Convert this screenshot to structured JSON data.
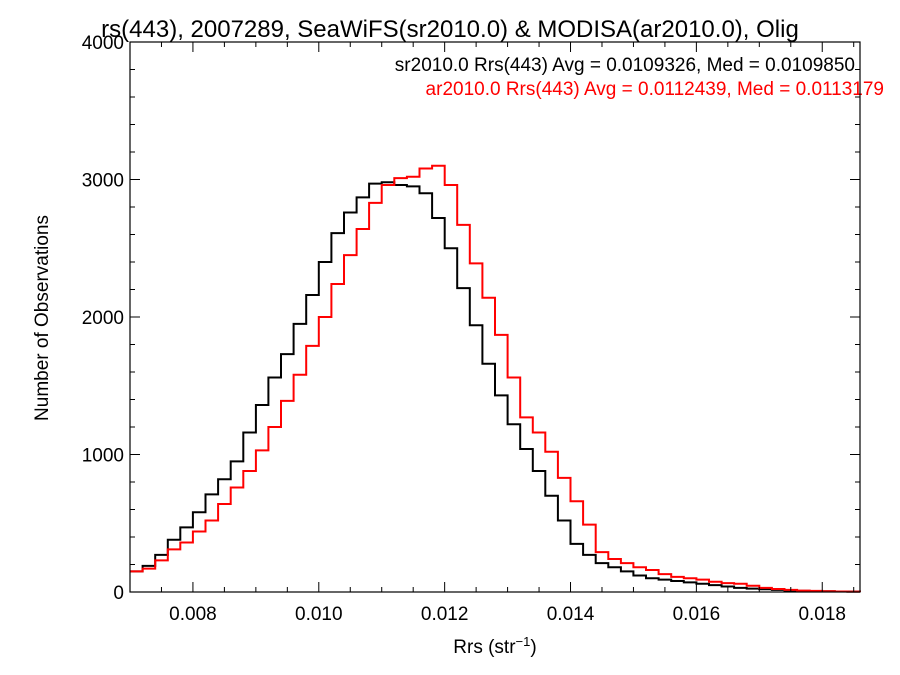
{
  "chart_data": {
    "type": "line",
    "title": "rs(443), 2007289, SeaWiFS(sr2010.0) & MODISA(ar2010.0), Olig",
    "xlabel": "Rrs (str",
    "xlabel_sup": "−1",
    "xlabel_end": ")",
    "ylabel": "Number of Observations",
    "xlim": [
      0.007,
      0.0186
    ],
    "ylim": [
      0,
      4000
    ],
    "x_ticks": [
      0.008,
      0.01,
      0.012,
      0.014,
      0.016,
      0.018
    ],
    "x_tick_labels": [
      "0.008",
      "0.010",
      "0.012",
      "0.014",
      "0.016",
      "0.018"
    ],
    "y_ticks": [
      0,
      1000,
      2000,
      3000,
      4000
    ],
    "y_tick_labels": [
      "0",
      "1000",
      "2000",
      "3000",
      "4000"
    ],
    "grid": false,
    "annotations": [
      {
        "text": "sr2010.0 Rrs(443) Avg = 0.0109326, Med = 0.0109850",
        "color": "#000000"
      },
      {
        "text": "ar2010.0 Rrs(443) Avg = 0.0112439, Med = 0.0113179",
        "color": "#ff0000"
      }
    ],
    "series": [
      {
        "color": "#000000",
        "x": [
          0.007,
          0.0072,
          0.0074,
          0.0076,
          0.0078,
          0.008,
          0.0082,
          0.0084,
          0.0086,
          0.0088,
          0.009,
          0.0092,
          0.0094,
          0.0096,
          0.0098,
          0.01,
          0.0102,
          0.0104,
          0.0106,
          0.0108,
          0.011,
          0.0112,
          0.0114,
          0.0116,
          0.0118,
          0.012,
          0.0122,
          0.0124,
          0.0126,
          0.0128,
          0.013,
          0.0132,
          0.0134,
          0.0136,
          0.0138,
          0.014,
          0.0142,
          0.0144,
          0.0146,
          0.0148,
          0.015,
          0.0152,
          0.0154,
          0.0156,
          0.0158,
          0.016,
          0.0162,
          0.0164,
          0.0166,
          0.0168,
          0.017,
          0.0172,
          0.0174,
          0.0176,
          0.0178,
          0.018,
          0.0182,
          0.0184,
          0.0186
        ],
        "y": [
          150,
          190,
          270,
          380,
          470,
          580,
          710,
          820,
          950,
          1160,
          1360,
          1560,
          1730,
          1950,
          2160,
          2400,
          2610,
          2760,
          2870,
          2970,
          2980,
          2960,
          2950,
          2900,
          2720,
          2500,
          2210,
          1940,
          1660,
          1430,
          1220,
          1040,
          880,
          700,
          520,
          350,
          270,
          210,
          180,
          150,
          120,
          100,
          90,
          80,
          70,
          60,
          50,
          40,
          30,
          25,
          20,
          15,
          10,
          8,
          6,
          5,
          4,
          3,
          2
        ]
      },
      {
        "color": "#ff0000",
        "x": [
          0.007,
          0.0072,
          0.0074,
          0.0076,
          0.0078,
          0.008,
          0.0082,
          0.0084,
          0.0086,
          0.0088,
          0.009,
          0.0092,
          0.0094,
          0.0096,
          0.0098,
          0.01,
          0.0102,
          0.0104,
          0.0106,
          0.0108,
          0.011,
          0.0112,
          0.0114,
          0.0116,
          0.0118,
          0.012,
          0.0122,
          0.0124,
          0.0126,
          0.0128,
          0.013,
          0.0132,
          0.0134,
          0.0136,
          0.0138,
          0.014,
          0.0142,
          0.0144,
          0.0146,
          0.0148,
          0.015,
          0.0152,
          0.0154,
          0.0156,
          0.0158,
          0.016,
          0.0162,
          0.0164,
          0.0166,
          0.0168,
          0.017,
          0.0172,
          0.0174,
          0.0176,
          0.0178,
          0.018,
          0.0182,
          0.0184,
          0.0186
        ],
        "y": [
          150,
          170,
          230,
          310,
          360,
          440,
          520,
          640,
          760,
          880,
          1030,
          1200,
          1390,
          1580,
          1790,
          2000,
          2240,
          2450,
          2640,
          2830,
          2960,
          3010,
          3020,
          3080,
          3100,
          2960,
          2670,
          2390,
          2140,
          1870,
          1560,
          1270,
          1160,
          1020,
          830,
          660,
          490,
          290,
          240,
          210,
          180,
          160,
          130,
          110,
          100,
          90,
          75,
          65,
          60,
          45,
          30,
          22,
          15,
          10,
          8,
          6,
          4,
          3,
          2
        ]
      }
    ]
  }
}
